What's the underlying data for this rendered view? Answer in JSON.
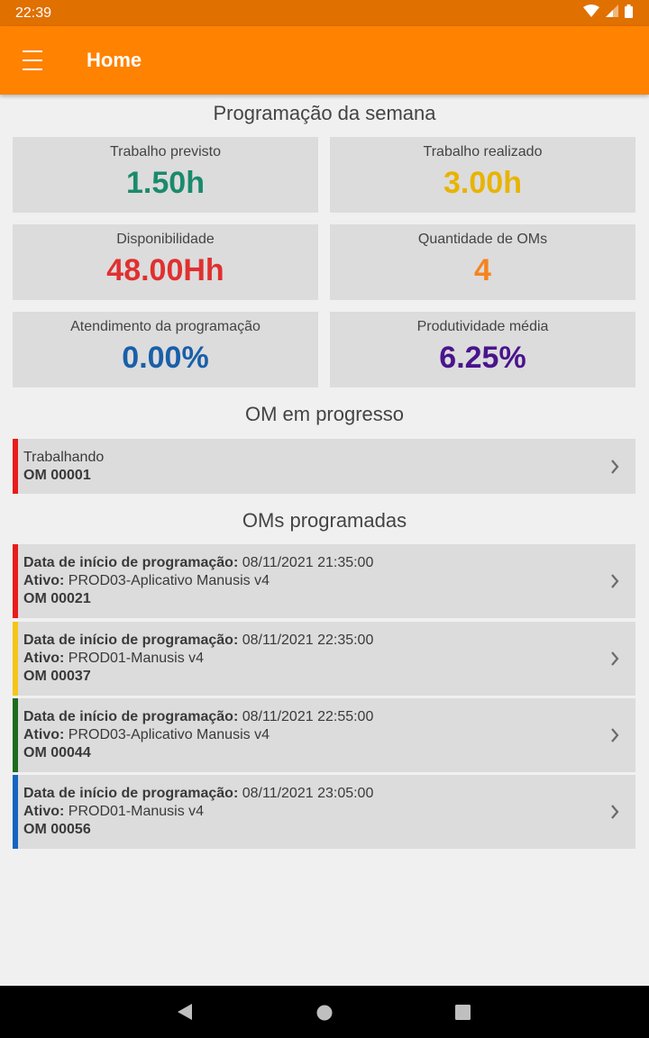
{
  "status_bar": {
    "time": "22:39"
  },
  "app_bar": {
    "title": "Home"
  },
  "weekly": {
    "title": "Programação da semana",
    "cards": [
      {
        "label": "Trabalho previsto",
        "value": "1.50h",
        "color": "#1b8a6b"
      },
      {
        "label": "Trabalho realizado",
        "value": "3.00h",
        "color": "#e8b400"
      },
      {
        "label": "Disponibilidade",
        "value": "48.00Hh",
        "color": "#e03030"
      },
      {
        "label": "Quantidade de OMs",
        "value": "4",
        "color": "#f5841f"
      },
      {
        "label": "Atendimento da programação",
        "value": "0.00%",
        "color": "#1a5fa8"
      },
      {
        "label": "Produtividade média",
        "value": "6.25%",
        "color": "#4a148c"
      }
    ]
  },
  "in_progress": {
    "title": "OM em progresso",
    "item": {
      "status": "Trabalhando",
      "om": "OM 00001",
      "color": "#e81c1c"
    }
  },
  "scheduled": {
    "title": "OMs programadas",
    "start_label": "Data de início de programação:",
    "asset_label": "Ativo:",
    "items": [
      {
        "date": "08/11/2021 21:35:00",
        "asset": "PROD03-Aplicativo Manusis v4",
        "om": "OM 00021",
        "color": "#e81c1c"
      },
      {
        "date": "08/11/2021 22:35:00",
        "asset": "PROD01-Manusis v4",
        "om": "OM 00037",
        "color": "#f5c518"
      },
      {
        "date": "08/11/2021 22:55:00",
        "asset": "PROD03-Aplicativo Manusis v4",
        "om": "OM 00044",
        "color": "#1e6b1e"
      },
      {
        "date": "08/11/2021 23:05:00",
        "asset": "PROD01-Manusis v4",
        "om": "OM 00056",
        "color": "#1565c0"
      }
    ]
  }
}
